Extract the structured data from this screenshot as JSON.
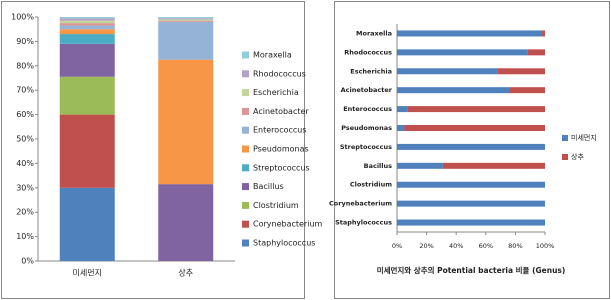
{
  "chart_data": [
    {
      "type": "bar",
      "categories": [
        "미세먼지",
        "상추"
      ],
      "series": [
        {
          "name": "Staphylococcus",
          "color": "#4f81bd",
          "values": [
            30,
            0
          ]
        },
        {
          "name": "Corynebacterium",
          "color": "#c0504d",
          "values": [
            30,
            0
          ]
        },
        {
          "name": "Clostridium",
          "color": "#9bbb59",
          "values": [
            15.5,
            0
          ]
        },
        {
          "name": "Bacillus",
          "color": "#8064a2",
          "values": [
            13.5,
            31.5
          ]
        },
        {
          "name": "Streptococcus",
          "color": "#4bacc6",
          "values": [
            4,
            0
          ]
        },
        {
          "name": "Pseudomonas",
          "color": "#f79646",
          "values": [
            2,
            51
          ]
        },
        {
          "name": "Enterococcus",
          "color": "#95b3d7",
          "values": [
            1.5,
            15.5
          ]
        },
        {
          "name": "Acinetobacter",
          "color": "#d99694",
          "values": [
            1,
            0.5
          ]
        },
        {
          "name": "Escherichia",
          "color": "#c3d69b",
          "values": [
            1,
            0.5
          ]
        },
        {
          "name": "Rhodococcus",
          "color": "#b3a2c7",
          "values": [
            1,
            0.5
          ]
        },
        {
          "name": "Moraxella",
          "color": "#93cddd",
          "values": [
            0.5,
            0.5
          ]
        }
      ],
      "stacked": true,
      "ylim": [
        0,
        100
      ],
      "yticks": [
        {
          "value": 0,
          "label": "0%"
        },
        {
          "value": 10,
          "label": "10%"
        },
        {
          "value": 20,
          "label": "20%"
        },
        {
          "value": 30,
          "label": "30%"
        },
        {
          "value": 40,
          "label": "40%"
        },
        {
          "value": 50,
          "label": "50%"
        },
        {
          "value": 60,
          "label": "60%"
        },
        {
          "value": 70,
          "label": "70%"
        },
        {
          "value": 80,
          "label": "80%"
        },
        {
          "value": 90,
          "label": "90%"
        },
        {
          "value": 100,
          "label": "100%"
        }
      ],
      "grid": false,
      "legend": "right"
    },
    {
      "type": "barh",
      "categories": [
        "Moraxella",
        "Rhodococcus",
        "Escherichia",
        "Acinetobacter",
        "Enterococcus",
        "Pseudomonas",
        "Streptococcus",
        "Bacillus",
        "Clostridium",
        "Corynebacterium",
        "Staphylococcus"
      ],
      "series": [
        {
          "name": "미세먼지",
          "color": "#4f81bd",
          "values": [
            98,
            88,
            68,
            76,
            7,
            5,
            100,
            31,
            100,
            100,
            100
          ]
        },
        {
          "name": "상추",
          "color": "#c0504d",
          "values": [
            2,
            12,
            32,
            24,
            93,
            95,
            0,
            69,
            0,
            0,
            0
          ]
        }
      ],
      "stacked": true,
      "xlabel": "미세먼지와 상추의 Potential bacteria 비율 (Genus)",
      "xlim": [
        0,
        100
      ],
      "xticks": [
        {
          "value": 0,
          "label": "0%"
        },
        {
          "value": 20,
          "label": "20%"
        },
        {
          "value": 40,
          "label": "40%"
        },
        {
          "value": 60,
          "label": "60%"
        },
        {
          "value": 80,
          "label": "80%"
        },
        {
          "value": 100,
          "label": "100%"
        }
      ],
      "grid": false,
      "legend": "right"
    }
  ]
}
